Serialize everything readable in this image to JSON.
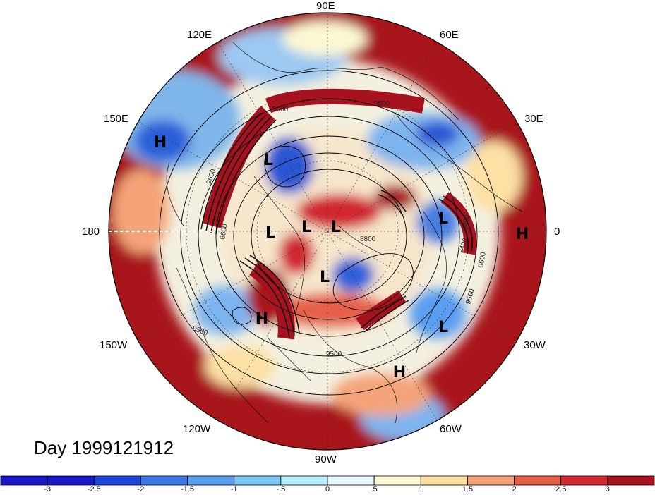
{
  "day_label": "Day 1999121912",
  "longitude_labels": {
    "e90": "90E",
    "e60": "60E",
    "e30": "30E",
    "zero": "0",
    "w30": "30W",
    "w60": "60W",
    "w90": "90W",
    "w120": "120W",
    "w150": "150W",
    "d180": "180",
    "e150": "150E",
    "e120": "120E"
  },
  "pressure_centers": [
    {
      "type": "H"
    },
    {
      "type": "L"
    },
    {
      "type": "L"
    },
    {
      "type": "L"
    },
    {
      "type": "L"
    },
    {
      "type": "L"
    },
    {
      "type": "L"
    },
    {
      "type": "H"
    },
    {
      "type": "H"
    },
    {
      "type": "L"
    },
    {
      "type": "H"
    }
  ],
  "contour_labels": [
    "9300",
    "9500",
    "9600",
    "8600",
    "8800",
    "9400",
    "9500",
    "9500",
    "9600",
    "9500",
    "9400"
  ],
  "colorbar": {
    "tick_labels": [
      "-3",
      "-2.5",
      "-2",
      "-1.5",
      "-1",
      "-.5",
      "0",
      ".5",
      "1",
      "1.5",
      "2",
      "2.5",
      "3"
    ],
    "colors": [
      "#1a16c9",
      "#1e46db",
      "#3c78e6",
      "#5a9ef0",
      "#7ec8f8",
      "#b6ecfc",
      "#e6f8fc",
      "#fcf8d4",
      "#fce0a4",
      "#f4a478",
      "#e66048",
      "#d22830",
      "#a8121e"
    ]
  }
}
